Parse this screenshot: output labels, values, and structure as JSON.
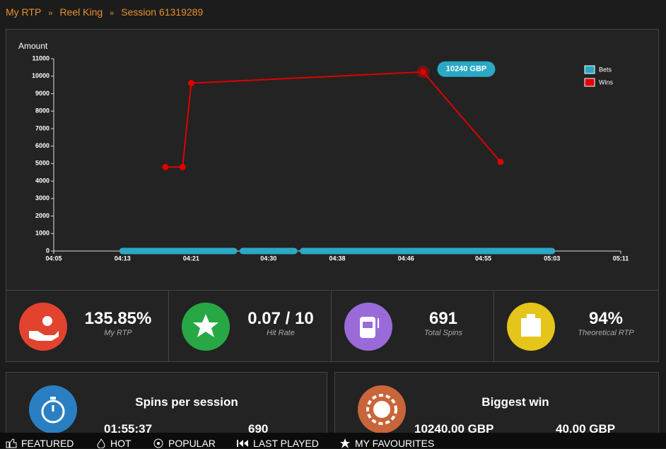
{
  "breadcrumb": [
    "My RTP",
    "Reel King",
    "Session 61319289"
  ],
  "chart_data": {
    "type": "line",
    "y_label": "Amount",
    "xlim": [
      "04:05",
      "05:11"
    ],
    "xticks": [
      "04:05",
      "04:13",
      "04:21",
      "04:30",
      "04:38",
      "04:46",
      "04:55",
      "05:03",
      "05:11"
    ],
    "ylim": [
      0,
      11000
    ],
    "yticks": [
      0,
      1000,
      2000,
      3000,
      4000,
      5000,
      6000,
      7000,
      8000,
      9000,
      10000,
      11000
    ],
    "series": [
      {
        "name": "Bets",
        "color": "#2ba8c4",
        "x": [
          "04:13",
          "04:21",
          null,
          "04:21",
          "04:26",
          null,
          "04:27",
          "04:33",
          null,
          "04:34",
          "04:56",
          null,
          "04:56",
          "05:03"
        ],
        "values": [
          0,
          0,
          null,
          0,
          0,
          null,
          0,
          0,
          null,
          0,
          0,
          null,
          0,
          0
        ]
      },
      {
        "name": "Wins",
        "color": "#e00000",
        "x": [
          "04:18",
          "04:20",
          "04:21",
          "04:48",
          "04:57"
        ],
        "values": [
          4800,
          4800,
          9600,
          10240,
          5100
        ]
      }
    ],
    "annotation": "10240 GBP"
  },
  "stats": [
    {
      "value": "135.85%",
      "label": "My RTP"
    },
    {
      "value": "0.07 / 10",
      "label": "Hit Rate"
    },
    {
      "value": "691",
      "label": "Total Spins"
    },
    {
      "value": "94%",
      "label": "Theoretical RTP"
    }
  ],
  "cards": [
    {
      "title": "Spins per session",
      "a": "01:55:37",
      "b": "690"
    },
    {
      "title": "Biggest win",
      "a": "10240.00 GBP",
      "b": "40.00 GBP"
    }
  ],
  "nav": [
    "FEATURED",
    "HOT",
    "POPULAR",
    "LAST PLAYED",
    "MY FAVOURITES"
  ]
}
